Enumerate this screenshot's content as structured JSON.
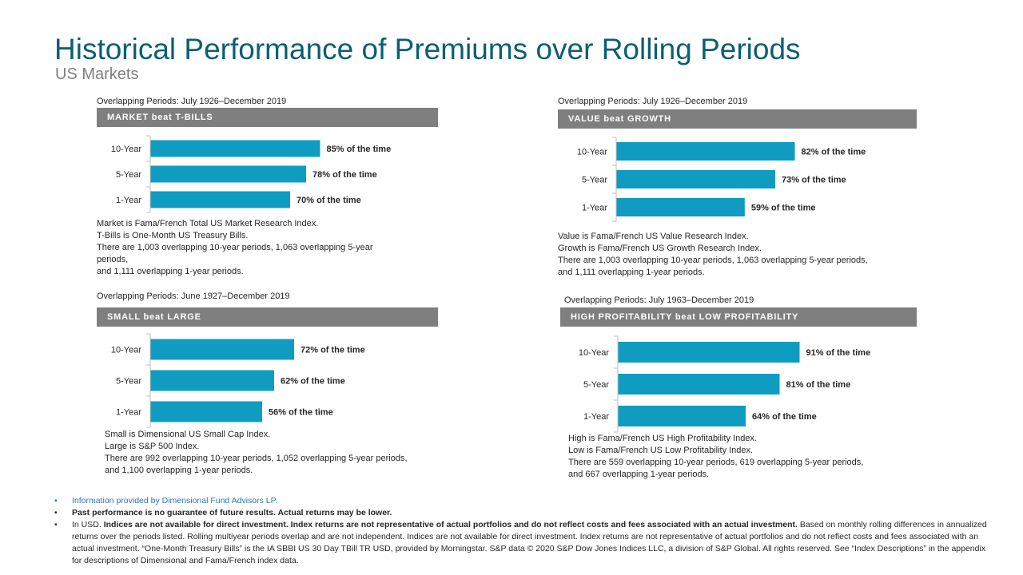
{
  "title": "Historical Performance of Premiums over Rolling Periods",
  "subtitle": "US Markets",
  "colors": {
    "bar": "#0f9cc0",
    "header": "#7f7f7f",
    "title": "#0b5f73"
  },
  "panels": [
    {
      "period": "Overlapping Periods: July 1926–December 2019",
      "header": "MARKET beat T-BILLS",
      "notes": [
        "Market is Fama/French Total US Market Research Index.",
        "T-Bills is One-Month US Treasury Bills.",
        "There are 1,003 overlapping 10-year periods, 1,063 overlapping 5-year",
        "periods,",
        "and 1,111 overlapping 1-year periods."
      ]
    },
    {
      "period": "Overlapping Periods: July 1926–December 2019",
      "header": "VALUE beat GROWTH",
      "notes": [
        "Value is Fama/French US Value Research Index.",
        "Growth is Fama/French US Growth Research Index.",
        "There are 1,003 overlapping 10-year periods, 1,063 overlapping 5-year periods,",
        "and 1,111 overlapping 1-year periods."
      ]
    },
    {
      "period": "Overlapping Periods: June 1927–December 2019",
      "header": "SMALL beat LARGE",
      "notes": [
        "Small is Dimensional US Small Cap Index.",
        "Large is S&P 500 Index.",
        "There are 992 overlapping 10-year periods, 1,052 overlapping 5-year periods,",
        "and 1,100 overlapping 1-year periods."
      ]
    },
    {
      "period": "Overlapping Periods: July 1963–December 2019",
      "header": "HIGH PROFITABILITY beat LOW PROFITABILITY",
      "notes": [
        "High is Fama/French US High Profitability Index.",
        "Low is Fama/French US Low Profitability Index.",
        "There are 559 overlapping 10-year periods, 619 overlapping 5-year periods,",
        "and 667 overlapping 1-year periods."
      ]
    }
  ],
  "chart_data": [
    {
      "type": "bar",
      "orientation": "horizontal",
      "categories": [
        "10-Year",
        "5-Year",
        "1-Year"
      ],
      "values": [
        85,
        78,
        70
      ],
      "labels": [
        "85% of the time",
        "78% of the time",
        "70% of the time"
      ]
    },
    {
      "type": "bar",
      "orientation": "horizontal",
      "categories": [
        "10-Year",
        "5-Year",
        "1-Year"
      ],
      "values": [
        82,
        73,
        59
      ],
      "labels": [
        "82% of the time",
        "73% of the time",
        "59% of the time"
      ]
    },
    {
      "type": "bar",
      "orientation": "horizontal",
      "categories": [
        "10-Year",
        "5-Year",
        "1-Year"
      ],
      "values": [
        72,
        62,
        56
      ],
      "labels": [
        "72% of the time",
        "62% of the time",
        "56% of the time"
      ]
    },
    {
      "type": "bar",
      "orientation": "horizontal",
      "categories": [
        "10-Year",
        "5-Year",
        "1-Year"
      ],
      "values": [
        91,
        81,
        64
      ],
      "labels": [
        "91% of the time",
        "81% of the time",
        "64% of the time"
      ]
    }
  ],
  "footer": {
    "line1": "Information provided by Dimensional Fund Advisors LP.",
    "line2": "Past performance is no guarantee of future results. Actual returns may be lower.",
    "line3_lead": "In USD. ",
    "line3_bold": "Indices are not available for direct investment. Index returns are not representative of actual portfolios and do not reflect costs and fees associated with an actual investment.",
    "line3_rest": " Based on monthly rolling differences in annualized returns over the periods listed. Rolling multiyear periods overlap and are not independent. Indices are not available for direct investment. Index returns are not representative of actual portfolios and do not reflect costs and fees associated with an actual investment. “One-Month Treasury Bills” is the IA SBBI US 30 Day TBill TR USD, provided by Morningstar. S&P data © 2020 S&P Dow Jones Indices LLC, a division of S&P Global. All rights reserved. See “Index Descriptions” in the appendix for descriptions of Dimensional and Fama/French index data."
  }
}
